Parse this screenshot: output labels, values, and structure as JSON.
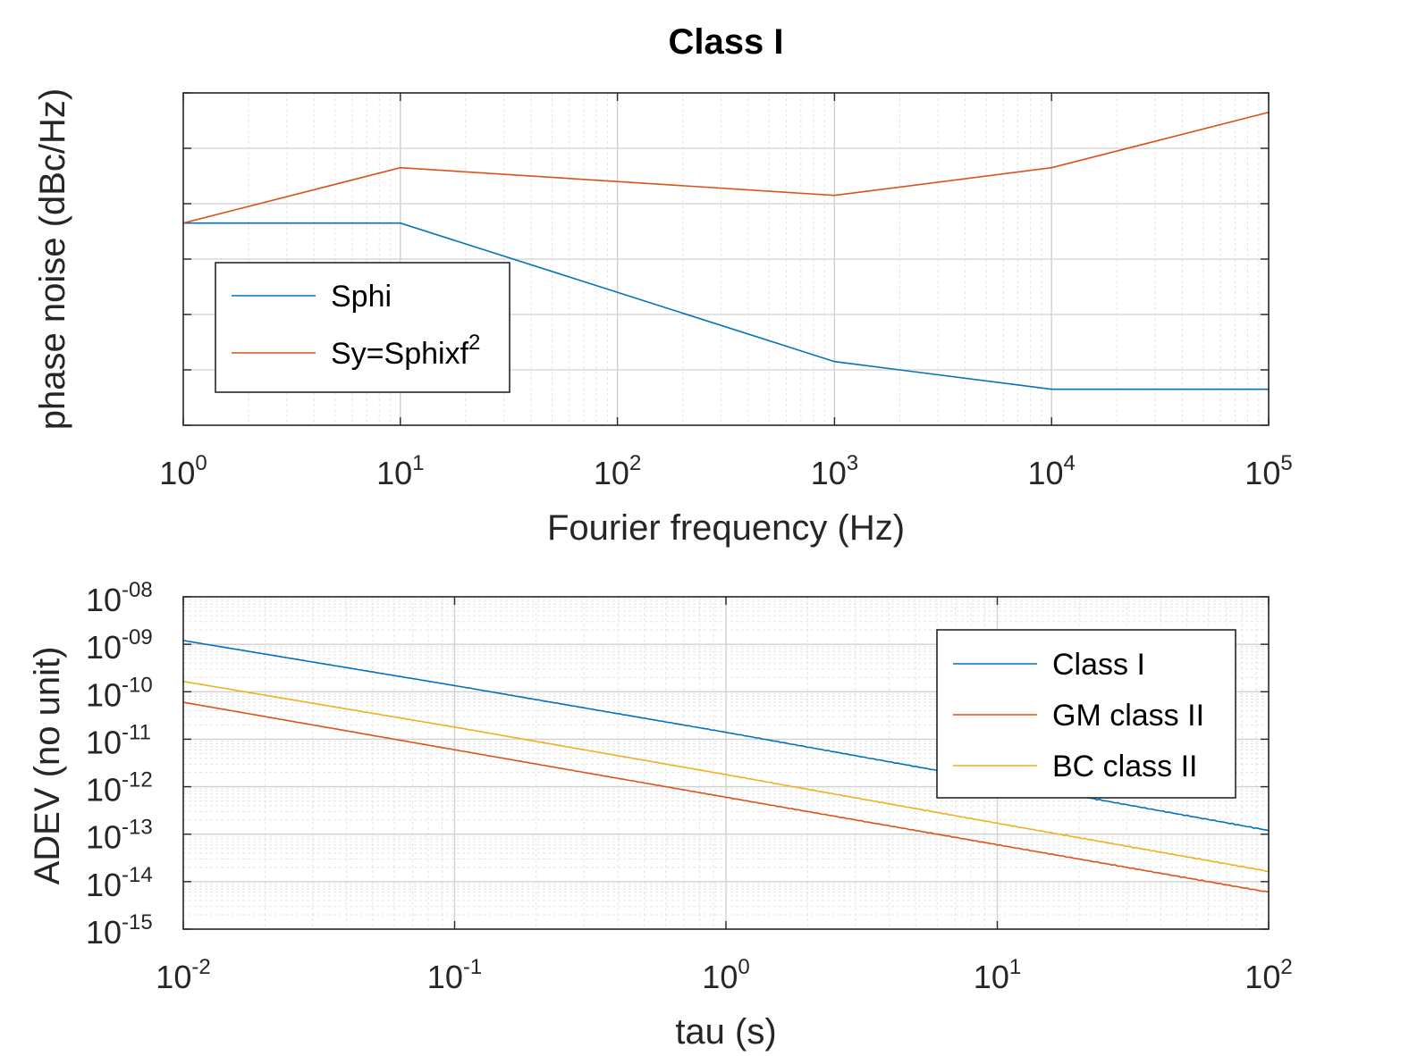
{
  "figure": {
    "title": "Class I"
  },
  "chart_data": [
    {
      "type": "line",
      "title": "Class I",
      "xlabel": "Fourier frequency (Hz)",
      "ylabel": "phase noise (dBc/Hz)",
      "xscale": "log",
      "yscale": "linear",
      "xlim": [
        1,
        100000
      ],
      "ylim": [
        -140,
        -20
      ],
      "x_tick_exponents": [
        "0",
        "1",
        "2",
        "3",
        "4",
        "5"
      ],
      "y_ticks": [
        "-20",
        "-40",
        "-60",
        "-80",
        "-100",
        "-120",
        "-140"
      ],
      "grid": true,
      "legend_position": "lower-left",
      "series": [
        {
          "name": "Sphi",
          "color": "#0072BD",
          "x": [
            1,
            10,
            1000,
            10000,
            100000
          ],
          "y": [
            -67,
            -67,
            -117,
            -127,
            -127
          ]
        },
        {
          "name": "Sy=Sphixf",
          "name_superscript": "2",
          "color": "#D95319",
          "x": [
            1,
            10,
            1000,
            10000,
            100000
          ],
          "y": [
            -67,
            -47,
            -57,
            -47,
            -27
          ]
        }
      ]
    },
    {
      "type": "line",
      "xlabel": "tau (s)",
      "ylabel": "ADEV (no unit)",
      "xscale": "log",
      "yscale": "log",
      "xlim": [
        0.01,
        100
      ],
      "ylim": [
        1e-15,
        1e-08
      ],
      "x_tick_exponents": [
        "-2",
        "-1",
        "0",
        "1",
        "2"
      ],
      "y_tick_exponents": [
        "-08",
        "-09",
        "-10",
        "-11",
        "-12",
        "-13",
        "-14",
        "-15"
      ],
      "grid": true,
      "legend_position": "top-right",
      "series": [
        {
          "name": "Class I",
          "color": "#0072BD",
          "x": [
            0.01,
            0.1,
            1,
            10,
            100
          ],
          "y": [
            1.2e-09,
            1.35e-10,
            1.4e-11,
            1.3e-12,
            1.2e-13
          ]
        },
        {
          "name": "GM class II",
          "color": "#D95319",
          "x": [
            0.01,
            0.1,
            1,
            10,
            100
          ],
          "y": [
            6e-11,
            6e-12,
            6e-13,
            6e-14,
            6e-15
          ]
        },
        {
          "name": "BC class II",
          "color": "#EDB120",
          "x": [
            0.01,
            0.1,
            1,
            10,
            100
          ],
          "y": [
            1.65e-10,
            1.8e-11,
            1.8e-12,
            1.7e-13,
            1.65e-14
          ]
        }
      ]
    }
  ]
}
